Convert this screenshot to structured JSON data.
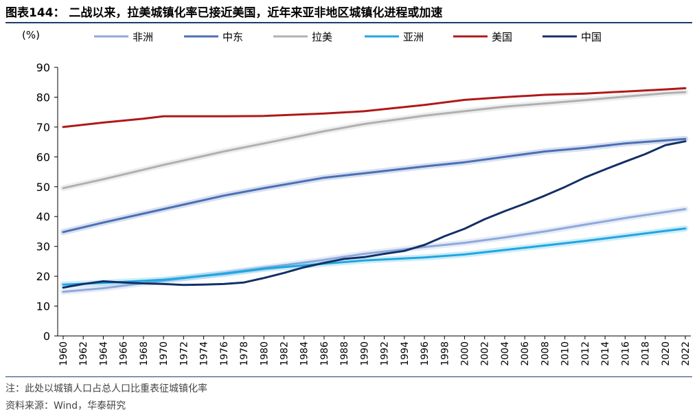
{
  "header": {
    "title": "图表144： 二战以来，拉美城镇化率已接近美国，近年来亚非地区城镇化进程或加速"
  },
  "footer": {
    "note": "注：此处以城镇人口占总人口比重表征城镇化率",
    "source": "资料来源：Wind，华泰研究"
  },
  "chart_data": {
    "type": "line",
    "ylabel": "(%)",
    "ylim": [
      0,
      90
    ],
    "yticks": [
      "0",
      "10",
      "20",
      "30",
      "40",
      "50",
      "60",
      "70",
      "80",
      "90"
    ],
    "xlim": [
      1960,
      2022
    ],
    "xticks": [
      "1960",
      "1962",
      "1964",
      "1966",
      "1968",
      "1970",
      "1972",
      "1974",
      "1976",
      "1978",
      "1980",
      "1982",
      "1984",
      "1986",
      "1988",
      "1990",
      "1992",
      "1994",
      "1996",
      "1998",
      "2000",
      "2002",
      "2004",
      "2006",
      "2008",
      "2010",
      "2012",
      "2014",
      "2016",
      "2018",
      "2020",
      "2022"
    ],
    "grid": false,
    "legend_position": "top",
    "series": [
      {
        "name": "非洲",
        "color": "#8ea9db",
        "glow": true,
        "x": [
          1960,
          1964,
          1970,
          1976,
          1980,
          1986,
          1990,
          1996,
          2000,
          2004,
          2008,
          2012,
          2016,
          2020,
          2022
        ],
        "values": [
          14.8,
          16.0,
          18.5,
          21.0,
          22.8,
          25.5,
          27.5,
          29.8,
          31.2,
          33.0,
          35.0,
          37.3,
          39.5,
          41.5,
          42.5
        ]
      },
      {
        "name": "中东",
        "color": "#4a6fb5",
        "glow": true,
        "x": [
          1960,
          1964,
          1970,
          1976,
          1980,
          1986,
          1990,
          1996,
          2000,
          2004,
          2008,
          2012,
          2016,
          2020,
          2022
        ],
        "values": [
          34.8,
          38.0,
          42.5,
          47.0,
          49.5,
          53.0,
          54.5,
          56.8,
          58.2,
          60.0,
          61.8,
          63.0,
          64.5,
          65.5,
          66.0
        ]
      },
      {
        "name": "拉美",
        "color": "#b0b0b0",
        "glow": true,
        "x": [
          1960,
          1964,
          1970,
          1976,
          1980,
          1986,
          1990,
          1996,
          2000,
          2004,
          2008,
          2012,
          2016,
          2020,
          2022
        ],
        "values": [
          49.5,
          52.5,
          57.3,
          61.8,
          64.5,
          68.6,
          71.0,
          73.8,
          75.3,
          76.8,
          77.9,
          79.0,
          80.2,
          81.3,
          81.7
        ]
      },
      {
        "name": "亚洲",
        "color": "#1ea7e1",
        "glow": true,
        "x": [
          1960,
          1964,
          1970,
          1976,
          1980,
          1986,
          1990,
          1996,
          2000,
          2004,
          2008,
          2012,
          2016,
          2020,
          2022
        ],
        "values": [
          17.2,
          17.8,
          18.8,
          20.8,
          22.5,
          24.2,
          25.3,
          26.3,
          27.3,
          28.8,
          30.3,
          31.8,
          33.5,
          35.2,
          36.0
        ]
      },
      {
        "name": "美国",
        "color": "#b01818",
        "glow": false,
        "x": [
          1960,
          1964,
          1968,
          1970,
          1976,
          1980,
          1986,
          1990,
          1996,
          2000,
          2004,
          2008,
          2012,
          2016,
          2020,
          2022
        ],
        "values": [
          70.0,
          71.5,
          72.8,
          73.6,
          73.6,
          73.7,
          74.5,
          75.3,
          77.4,
          79.1,
          80.0,
          80.8,
          81.2,
          81.9,
          82.6,
          83.0
        ]
      },
      {
        "name": "中国",
        "color": "#132f66",
        "glow": false,
        "x": [
          1960,
          1962,
          1964,
          1966,
          1968,
          1970,
          1972,
          1974,
          1976,
          1978,
          1980,
          1982,
          1984,
          1986,
          1988,
          1990,
          1992,
          1994,
          1996,
          1998,
          2000,
          2002,
          2004,
          2006,
          2008,
          2010,
          2012,
          2014,
          2016,
          2018,
          2020,
          2022
        ],
        "values": [
          16.2,
          17.4,
          18.3,
          17.9,
          17.6,
          17.4,
          17.1,
          17.2,
          17.4,
          17.9,
          19.4,
          21.1,
          23.0,
          24.5,
          25.8,
          26.4,
          27.5,
          28.5,
          30.5,
          33.4,
          35.9,
          39.1,
          41.8,
          44.3,
          47.0,
          49.9,
          53.1,
          55.8,
          58.4,
          60.9,
          63.9,
          65.2
        ]
      }
    ]
  }
}
